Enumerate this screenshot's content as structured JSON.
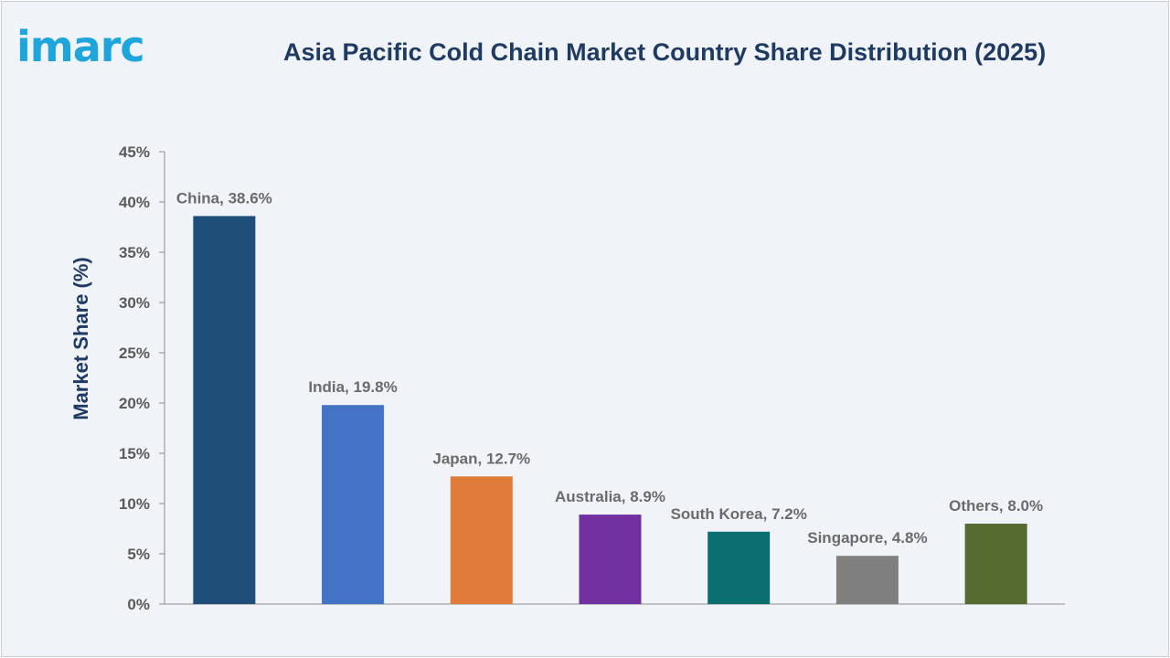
{
  "header": {
    "logo_text": "imarc",
    "title": "Asia Pacific Cold Chain Market Country Share Distribution (2025)"
  },
  "chart_data": {
    "type": "bar",
    "title": "Asia Pacific Cold Chain Market Country Share Distribution (2025)",
    "xlabel": "",
    "ylabel": "Market Share (%)",
    "ylim": [
      0,
      45
    ],
    "yticks": [
      "0%",
      "5%",
      "10%",
      "15%",
      "20%",
      "25%",
      "30%",
      "35%",
      "40%",
      "45%"
    ],
    "categories": [
      "China",
      "India",
      "Japan",
      "Australia",
      "South Korea",
      "Singapore",
      "Others"
    ],
    "values": [
      38.6,
      19.8,
      12.7,
      8.9,
      7.2,
      4.8,
      8.0
    ],
    "data_labels": [
      "China, 38.6%",
      "India, 19.8%",
      "Japan, 12.7%",
      "Australia, 8.9%",
      "South Korea, 7.2%",
      "Singapore, 4.8%",
      "Others, 8.0%"
    ],
    "colors": [
      "#1f4e79",
      "#4472c4",
      "#e07b39",
      "#7030a0",
      "#0b6e6e",
      "#7f7f7f",
      "#556b2f"
    ],
    "grid": false,
    "legend": "none"
  }
}
